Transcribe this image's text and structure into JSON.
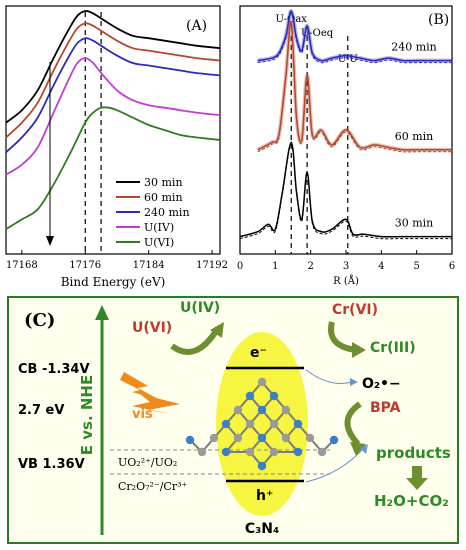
{
  "chart_data": [
    {
      "panel": "(A)",
      "type": "line",
      "xlabel": "Bind Energy (eV)",
      "ylabel": "",
      "xlim": [
        17166,
        17193
      ],
      "x_ticks": [
        17168,
        17176,
        17184,
        17192
      ],
      "dashed_lines_x": [
        17176,
        17178
      ],
      "legend_placement": "bottom-right",
      "series": [
        {
          "name": "30 min",
          "color": "#000000",
          "x": [
            17166,
            17168,
            17170,
            17172,
            17174,
            17175,
            17176,
            17177,
            17178,
            17180,
            17182,
            17184,
            17186,
            17188,
            17190,
            17193
          ],
          "y": [
            0.53,
            0.58,
            0.66,
            0.79,
            0.91,
            0.96,
            0.98,
            0.97,
            0.95,
            0.91,
            0.88,
            0.87,
            0.86,
            0.85,
            0.84,
            0.83
          ]
        },
        {
          "name": "60 min",
          "color": "#b5482b",
          "x": [
            17166,
            17168,
            17170,
            17172,
            17174,
            17175,
            17176,
            17177,
            17178,
            17180,
            17182,
            17184,
            17186,
            17188,
            17190,
            17193
          ],
          "y": [
            0.47,
            0.53,
            0.61,
            0.74,
            0.86,
            0.91,
            0.93,
            0.92,
            0.9,
            0.86,
            0.83,
            0.82,
            0.81,
            0.8,
            0.79,
            0.78
          ]
        },
        {
          "name": "240 min",
          "color": "#2a2ac0",
          "x": [
            17166,
            17168,
            17170,
            17172,
            17174,
            17175,
            17176,
            17177,
            17178,
            17180,
            17182,
            17184,
            17186,
            17188,
            17190,
            17193
          ],
          "y": [
            0.41,
            0.47,
            0.55,
            0.68,
            0.8,
            0.85,
            0.87,
            0.86,
            0.84,
            0.8,
            0.77,
            0.76,
            0.75,
            0.74,
            0.73,
            0.72
          ]
        },
        {
          "name": "U(IV)",
          "color": "#c13cd6",
          "x": [
            17166,
            17168,
            17170,
            17172,
            17174,
            17175,
            17176,
            17177,
            17178,
            17180,
            17182,
            17184,
            17186,
            17188,
            17190,
            17193
          ],
          "y": [
            0.32,
            0.36,
            0.43,
            0.57,
            0.71,
            0.77,
            0.79,
            0.77,
            0.73,
            0.66,
            0.62,
            0.6,
            0.59,
            0.58,
            0.57,
            0.56
          ]
        },
        {
          "name": "U(VI)",
          "color": "#2e7d1c",
          "x": [
            17166,
            17168,
            17170,
            17172,
            17174,
            17176,
            17177,
            17178,
            17179,
            17180,
            17182,
            17184,
            17186,
            17188,
            17190,
            17193
          ],
          "y": [
            0.1,
            0.14,
            0.18,
            0.28,
            0.4,
            0.53,
            0.57,
            0.59,
            0.59,
            0.58,
            0.55,
            0.52,
            0.5,
            0.48,
            0.47,
            0.46
          ]
        }
      ]
    },
    {
      "panel": "(B)",
      "type": "line",
      "xlabel": "R (Å)",
      "ylabel": "",
      "xlim": [
        0,
        6
      ],
      "x_ticks": [
        0,
        1,
        2,
        3,
        4,
        5,
        6
      ],
      "dashed_lines_x": [
        1.45,
        1.9,
        3.05
      ],
      "peak_labels": [
        {
          "text": "U-Oax",
          "x": 1.45
        },
        {
          "text": "U-Oeq",
          "x": 1.9
        },
        {
          "text": "U-U",
          "x": 3.05
        }
      ],
      "series": [
        {
          "name": "240 min",
          "color": "#2a2ac0",
          "x": [
            0.5,
            0.9,
            1.1,
            1.3,
            1.45,
            1.6,
            1.75,
            1.9,
            2.05,
            2.3,
            2.6,
            3.0,
            3.4,
            3.8,
            4.2,
            4.6,
            5.0,
            5.5,
            6.0
          ],
          "y": [
            0.78,
            0.79,
            0.81,
            0.88,
            0.98,
            0.87,
            0.82,
            0.92,
            0.81,
            0.78,
            0.79,
            0.8,
            0.79,
            0.78,
            0.79,
            0.78,
            0.78,
            0.78,
            0.78
          ]
        },
        {
          "name": "60 min",
          "color": "#b5482b",
          "x": [
            0.5,
            0.9,
            1.1,
            1.3,
            1.45,
            1.6,
            1.75,
            1.9,
            2.05,
            2.3,
            2.6,
            3.0,
            3.4,
            3.8,
            4.2,
            4.6,
            5.0,
            5.5,
            6.0
          ],
          "y": [
            0.42,
            0.45,
            0.48,
            0.72,
            0.93,
            0.55,
            0.46,
            0.72,
            0.48,
            0.5,
            0.44,
            0.5,
            0.43,
            0.44,
            0.43,
            0.42,
            0.42,
            0.42,
            0.42
          ]
        },
        {
          "name": "30 min",
          "color": "#000000",
          "x": [
            0.0,
            0.5,
            0.8,
            1.0,
            1.2,
            1.45,
            1.6,
            1.75,
            1.9,
            2.05,
            2.3,
            2.6,
            3.0,
            3.2,
            3.5,
            4.0,
            4.5,
            5.0,
            5.5,
            6.0
          ],
          "y": [
            0.07,
            0.09,
            0.12,
            0.1,
            0.25,
            0.45,
            0.25,
            0.14,
            0.33,
            0.13,
            0.09,
            0.1,
            0.14,
            0.08,
            0.08,
            0.07,
            0.07,
            0.07,
            0.07,
            0.07
          ]
        }
      ]
    }
  ],
  "panel_c": {
    "label": "(C)",
    "axis_label": "E vs. NHE",
    "cb": "CB -1.34V",
    "gap": "2.7 eV",
    "vb": "VB 1.36V",
    "vis": "vis",
    "u6": "U(VI)",
    "u4": "U(IV)",
    "cr6": "Cr(VI)",
    "cr3": "Cr(III)",
    "electron": "e⁻",
    "hole": "h⁺",
    "superoxide": "O₂•−",
    "bpa": "BPA",
    "products": "products",
    "final": "H₂O+CO₂",
    "redox1": "UO₂²⁺/UO₂",
    "redox2": "Cr₂O₇²⁻/Cr³⁺",
    "catalyst": "C₃N₄",
    "colors": {
      "green": "#2f8a26",
      "red": "#c0392b",
      "gray": "#909090",
      "blue": "#3b7fc4",
      "yellow": "#f5f542",
      "border": "#2b7a24"
    }
  }
}
